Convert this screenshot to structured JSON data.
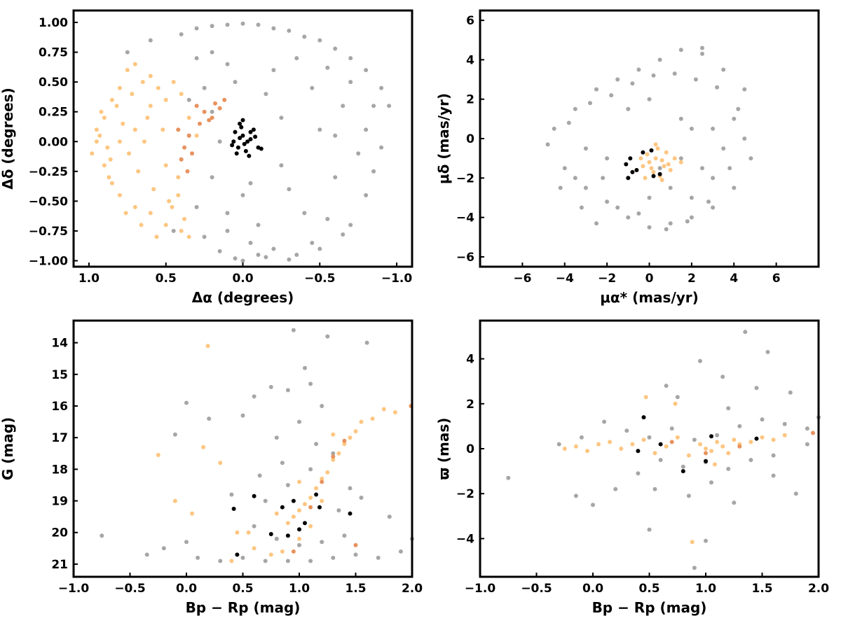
{
  "figure": {
    "colors": {
      "field": "#a6a6a6",
      "light_orange": "#fdc681",
      "dark_orange": "#e8925e",
      "black": "#000000"
    }
  },
  "chart_data": [
    {
      "type": "scatter",
      "xlabel": "Δα (degrees)",
      "ylabel": "Δδ (degrees)",
      "xlim": [
        1.1,
        -1.1
      ],
      "ylim": [
        -1.05,
        1.1
      ],
      "x_inverted": true,
      "xticks": [
        1.0,
        0.5,
        0.0,
        -0.5,
        -1.0
      ],
      "xtick_labels": [
        "1.0",
        "0.5",
        "0.0",
        "−0.5",
        "−1.0"
      ],
      "yticks": [
        1.0,
        0.75,
        0.5,
        0.25,
        0.0,
        -0.25,
        -0.5,
        -0.75,
        -1.0
      ],
      "ytick_labels": [
        "1.00",
        "0.75",
        "0.50",
        "0.25",
        "0.00",
        "−0.25",
        "−0.50",
        "−0.75",
        "−1.00"
      ],
      "grid": false,
      "series": [
        {
          "color": "#a6a6a6",
          "x": [
            0.75,
            0.6,
            0.4,
            0.3,
            0.2,
            0.1,
            0.0,
            -0.1,
            -0.2,
            -0.3,
            -0.4,
            -0.5,
            -0.6,
            -0.7,
            -0.8,
            -0.9,
            -0.95,
            0.3,
            0.2,
            0.1,
            -0.2,
            -0.35,
            -0.55,
            -0.7,
            -0.85,
            0.25,
            0.05,
            -0.15,
            -0.45,
            -0.65,
            -0.8,
            0.35,
            0.15,
            -0.05,
            -0.25,
            -0.5,
            -0.75,
            -0.9,
            0.4,
            0.2,
            0.0,
            -0.3,
            -0.6,
            -0.8,
            0.3,
            0.1,
            -0.1,
            -0.4,
            -0.55,
            -0.7,
            0.45,
            0.25,
            -0.05,
            -0.2,
            -0.45,
            -0.65,
            0.15,
            -0.1,
            -0.35,
            -0.5,
            0.05,
            -0.15,
            -0.3,
            0.0,
            0.1,
            -0.25,
            0.35,
            0.2,
            -0.6,
            -0.85
          ],
          "y": [
            0.75,
            0.85,
            0.9,
            0.95,
            0.97,
            0.98,
            0.99,
            0.98,
            0.95,
            0.93,
            0.88,
            0.85,
            0.78,
            0.7,
            0.6,
            0.45,
            0.3,
            0.7,
            0.75,
            0.65,
            0.6,
            0.7,
            0.62,
            0.5,
            0.3,
            0.45,
            0.5,
            0.4,
            0.45,
            0.3,
            0.1,
            0.05,
            0.0,
            -0.35,
            -0.2,
            0.1,
            -0.1,
            -0.05,
            -0.15,
            -0.3,
            -0.45,
            -0.4,
            -0.3,
            -0.45,
            -0.55,
            -0.6,
            -0.7,
            -0.6,
            -0.65,
            -0.7,
            -0.75,
            -0.8,
            -0.85,
            -0.9,
            -0.85,
            -0.78,
            -0.92,
            -0.95,
            -0.95,
            -0.9,
            -0.98,
            -0.97,
            -0.99,
            -1.0,
            -0.75,
            0.2,
            0.35,
            0.25,
            0.05,
            -0.25
          ]
        },
        {
          "color": "#fdc681",
          "x": [
            0.95,
            0.9,
            0.85,
            0.8,
            0.75,
            0.7,
            0.65,
            0.6,
            0.55,
            0.5,
            0.45,
            0.4,
            0.35,
            0.3,
            0.9,
            0.85,
            0.8,
            0.7,
            0.6,
            0.5,
            0.4,
            0.95,
            0.88,
            0.78,
            0.68,
            0.58,
            0.48,
            0.38,
            0.92,
            0.82,
            0.72,
            0.62,
            0.52,
            0.42,
            0.86,
            0.76,
            0.66,
            0.56,
            0.46,
            0.8,
            0.7,
            0.6,
            0.5,
            0.42,
            0.35,
            0.98,
            0.93,
            0.87,
            0.74,
            0.64
          ],
          "y": [
            0.0,
            0.2,
            0.35,
            0.45,
            0.6,
            0.65,
            0.5,
            0.55,
            0.45,
            0.35,
            0.5,
            0.4,
            0.2,
            0.05,
            -0.2,
            -0.35,
            -0.45,
            -0.55,
            -0.6,
            -0.7,
            -0.75,
            0.1,
            -0.05,
            0.15,
            -0.25,
            -0.4,
            -0.5,
            -0.65,
            0.25,
            0.3,
            0.4,
            0.2,
            0.1,
            -0.3,
            -0.15,
            -0.6,
            -0.7,
            -0.8,
            -0.55,
            0.0,
            0.1,
            0.3,
            -0.2,
            -0.45,
            -0.8,
            -0.1,
            0.05,
            -0.3,
            -0.1,
            0.0
          ]
        },
        {
          "color": "#e8925e",
          "x": [
            0.3,
            0.25,
            0.2,
            0.15,
            0.12,
            0.28,
            0.35,
            0.38,
            0.4,
            0.33,
            0.42,
            0.36,
            0.18,
            0.22
          ],
          "y": [
            0.3,
            0.25,
            0.2,
            0.28,
            0.35,
            0.15,
            0.05,
            -0.05,
            -0.15,
            -0.1,
            0.1,
            -0.25,
            0.32,
            0.18
          ]
        },
        {
          "color": "#000000",
          "x": [
            0.05,
            0.02,
            0.0,
            -0.03,
            -0.05,
            0.03,
            0.01,
            -0.02,
            -0.07,
            -0.1,
            0.04,
            0.06,
            -0.04,
            -0.08,
            0.0,
            0.02,
            -0.01,
            -0.05,
            0.07,
            -0.12
          ],
          "y": [
            0.08,
            0.15,
            0.05,
            0.0,
            0.02,
            -0.05,
            0.12,
            -0.08,
            0.1,
            -0.05,
            -0.1,
            0.0,
            -0.12,
            0.04,
            0.18,
            0.03,
            -0.02,
            0.08,
            -0.03,
            -0.06
          ]
        }
      ]
    },
    {
      "type": "scatter",
      "xlabel": "μα* (mas/yr)",
      "ylabel": "μδ (mas/yr)",
      "xlim": [
        -8,
        8
      ],
      "ylim": [
        -6.5,
        6.5
      ],
      "xticks": [
        -6,
        -4,
        -2,
        0,
        2,
        4,
        6
      ],
      "xtick_labels": [
        "−6",
        "−4",
        "−2",
        "0",
        "2",
        "4",
        "6"
      ],
      "yticks": [
        6,
        4,
        2,
        0,
        -2,
        -4,
        -6
      ],
      "ytick_labels": [
        "6",
        "4",
        "2",
        "0",
        "−2",
        "−4",
        "−6"
      ],
      "grid": false,
      "series": [
        {
          "color": "#a6a6a6",
          "x": [
            -4.5,
            -3.5,
            -2.5,
            -1.5,
            -0.5,
            0.5,
            1.5,
            2.5,
            3.5,
            4.5,
            -4,
            -3,
            -2,
            -1,
            0,
            1,
            2,
            3,
            4,
            4.8,
            -4.8,
            -3.8,
            -2.8,
            -1.8,
            -0.8,
            0.2,
            1.2,
            2.2,
            3.2,
            4.2,
            -2,
            -1,
            0,
            1,
            2,
            3,
            -3,
            0.5,
            1.5,
            2.5,
            3.5,
            -1.5,
            -0.5,
            4.5,
            -3.5,
            1.8,
            2.8,
            0.8,
            -2.5,
            3.8,
            1.5,
            0.0,
            -1.0,
            2.0,
            3.0,
            4.0,
            -4.2,
            -3.2,
            -2.2,
            2.5
          ],
          "y": [
            0.5,
            1.5,
            2.5,
            3.0,
            3.5,
            4.0,
            4.5,
            4.3,
            3.5,
            2.5,
            -1.5,
            -2.5,
            -3.2,
            -4.0,
            -4.5,
            -4.3,
            -4.0,
            -3.5,
            -2.5,
            -1.0,
            -0.3,
            0.8,
            1.8,
            2.2,
            2.8,
            3.2,
            3.3,
            3.0,
            2.6,
            1.5,
            -1.0,
            -2.0,
            -3.0,
            -2.5,
            -3.0,
            -2.0,
            -0.5,
            -1.5,
            -1.0,
            -1.5,
            -0.5,
            -3.5,
            -3.8,
            0.0,
            -2.0,
            -4.2,
            -3.2,
            -4.6,
            -4.3,
            -1.5,
            1.0,
            2.0,
            1.5,
            0.5,
            0.5,
            1.0,
            -2.5,
            -3.5,
            -2.0,
            4.6
          ]
        },
        {
          "color": "#fdc681",
          "x": [
            0.0,
            0.3,
            -0.3,
            0.6,
            -0.6,
            0.9,
            0.2,
            -0.1,
            0.5,
            1.2,
            0.8,
            -0.4,
            0.1,
            0.4,
            1.0,
            -0.2,
            0.7,
            1.5,
            0.3,
            0.6
          ],
          "y": [
            -1.2,
            -1.0,
            -1.4,
            -1.1,
            -1.6,
            -1.3,
            -1.7,
            -0.8,
            -1.9,
            -1.0,
            -0.7,
            -1.0,
            -1.5,
            -0.5,
            -1.6,
            -2.0,
            -1.4,
            -1.2,
            -0.3,
            -2.1
          ]
        },
        {
          "color": "#000000",
          "x": [
            -1.0,
            -0.8,
            -0.6,
            -1.1,
            -0.9,
            0.2,
            0.5,
            -0.3,
            0.1
          ],
          "y": [
            -2.0,
            -1.7,
            -1.6,
            -1.3,
            -1.0,
            -1.9,
            -1.8,
            -0.7,
            -0.6
          ]
        }
      ]
    },
    {
      "type": "scatter",
      "xlabel": "Bp − Rp (mag)",
      "ylabel": "G (mag)",
      "xlim": [
        -1.0,
        2.0
      ],
      "ylim": [
        13.3,
        21.4
      ],
      "y_inverted": true,
      "xticks": [
        -1.0,
        -0.5,
        0.0,
        0.5,
        1.0,
        1.5,
        2.0
      ],
      "xtick_labels": [
        "−1.0",
        "−0.5",
        "0.0",
        "0.5",
        "1.0",
        "1.5",
        "2.0"
      ],
      "yticks": [
        21,
        20,
        19,
        18,
        17,
        16,
        15,
        14
      ],
      "ytick_labels": [
        "21",
        "20",
        "19",
        "18",
        "17",
        "16",
        "15",
        "14"
      ],
      "grid": false,
      "series": [
        {
          "color": "#a6a6a6",
          "x": [
            -0.75,
            -0.35,
            -0.2,
            0.0,
            0.1,
            0.3,
            0.5,
            0.7,
            0.9,
            1.1,
            1.3,
            1.5,
            1.7,
            1.9,
            0.6,
            0.8,
            1.0,
            1.2,
            1.4,
            0.7,
            0.9,
            1.1,
            1.3,
            0.8,
            1.0,
            1.2,
            0.9,
            1.1,
            0.5,
            0.6,
            0.75,
            1.05,
            1.25,
            1.6,
            1.8,
            2.0,
            0.4,
            0.2,
            0.0,
            -0.1,
            0.95,
            1.45,
            1.55,
            0.85,
            1.15,
            0.65,
            1.35
          ],
          "y": [
            20.1,
            20.7,
            20.5,
            20.3,
            20.8,
            20.9,
            20.8,
            20.9,
            20.9,
            20.9,
            20.8,
            20.7,
            20.8,
            20.6,
            19.8,
            20.2,
            20.4,
            20.3,
            20.1,
            19.0,
            18.5,
            18.0,
            17.5,
            17.0,
            16.5,
            16.0,
            15.5,
            15.3,
            16.3,
            15.7,
            15.4,
            14.8,
            13.8,
            14.0,
            19.5,
            20.2,
            18.8,
            16.4,
            15.9,
            16.9,
            13.6,
            18.6,
            18.9,
            17.8,
            17.2,
            18.2,
            19.3
          ]
        },
        {
          "color": "#fdc681",
          "x": [
            -0.25,
            -0.1,
            0.05,
            0.15,
            0.3,
            0.45,
            0.6,
            0.75,
            0.85,
            0.95,
            1.0,
            1.05,
            1.1,
            1.15,
            1.2,
            1.25,
            1.3,
            1.35,
            1.4,
            1.45,
            1.5,
            1.55,
            1.65,
            1.75,
            1.85,
            0.9,
            1.0,
            1.1,
            0.8,
            1.2,
            0.19,
            0.4,
            0.55,
            1.0,
            1.3
          ],
          "y": [
            17.55,
            19.0,
            19.4,
            17.3,
            17.8,
            20.0,
            20.5,
            20.7,
            20.6,
            19.5,
            19.3,
            19.1,
            18.9,
            18.6,
            18.3,
            18.1,
            17.7,
            17.5,
            17.2,
            17.0,
            16.8,
            16.5,
            16.4,
            16.1,
            16.2,
            19.7,
            20.2,
            19.8,
            19.4,
            19.0,
            14.1,
            20.9,
            20.0,
            18.4,
            16.9
          ]
        },
        {
          "color": "#e8925e",
          "x": [
            1.1,
            1.2,
            1.3,
            0.95,
            1.4,
            1.5,
            1.99
          ],
          "y": [
            19.2,
            18.4,
            17.6,
            20.6,
            17.1,
            20.4,
            16.0
          ]
        },
        {
          "color": "#000000",
          "x": [
            0.45,
            0.42,
            0.6,
            0.75,
            0.9,
            0.95,
            1.0,
            1.05,
            1.15,
            1.18,
            1.45,
            0.85
          ],
          "y": [
            20.7,
            19.25,
            18.85,
            20.05,
            20.1,
            19.0,
            19.9,
            19.7,
            18.8,
            19.2,
            19.4,
            19.2
          ]
        }
      ]
    },
    {
      "type": "scatter",
      "xlabel": "Bp − Rp (mag)",
      "ylabel": "ϖ (mas)",
      "xlim": [
        -1.0,
        2.0
      ],
      "ylim": [
        -5.7,
        5.7
      ],
      "xticks": [
        -1.0,
        -0.5,
        0.0,
        0.5,
        1.0,
        1.5,
        2.0
      ],
      "xtick_labels": [
        "−1.0",
        "−0.5",
        "0.0",
        "0.5",
        "1.0",
        "1.5",
        "2.0"
      ],
      "yticks": [
        4,
        2,
        0,
        -2,
        -4
      ],
      "ytick_labels": [
        "4",
        "2",
        "0",
        "−2",
        "−4"
      ],
      "grid": false,
      "series": [
        {
          "color": "#a6a6a6",
          "x": [
            -0.75,
            -0.3,
            -0.1,
            0.1,
            0.3,
            0.5,
            0.7,
            0.9,
            1.1,
            1.3,
            1.5,
            1.7,
            1.9,
            2.0,
            0.6,
            0.8,
            1.0,
            1.2,
            1.4,
            0.4,
            0.55,
            0.85,
            1.05,
            1.25,
            1.6,
            1.8,
            0.95,
            1.35,
            0.65,
            1.15,
            0.75,
            1.45,
            0.9,
            1.0,
            1.55,
            1.75,
            0.2,
            0.0,
            -0.15,
            1.6,
            1.9,
            0.5,
            1.2
          ],
          "y": [
            -1.3,
            0.2,
            0.5,
            1.2,
            0.8,
            0.5,
            0.9,
            0.4,
            0.6,
            1.0,
            1.3,
            1.1,
            0.9,
            1.4,
            -0.5,
            -0.8,
            -0.6,
            -0.9,
            -0.5,
            -1.1,
            -1.8,
            -2.1,
            -1.5,
            -2.4,
            -1.2,
            -2.0,
            3.9,
            5.2,
            2.8,
            3.2,
            2.3,
            2.7,
            -5.3,
            -4.1,
            4.3,
            2.5,
            -1.8,
            -2.5,
            -2.1,
            -0.3,
            0.2,
            -3.6,
            1.8
          ]
        },
        {
          "color": "#fdc681",
          "x": [
            -0.25,
            -0.15,
            -0.05,
            0.05,
            0.15,
            0.25,
            0.35,
            0.45,
            0.55,
            0.65,
            0.75,
            0.85,
            0.95,
            1.0,
            1.05,
            1.1,
            1.15,
            1.2,
            1.25,
            1.3,
            1.4,
            1.5,
            1.6,
            1.7,
            0.88,
            0.47,
            0.73,
            1.08
          ],
          "y": [
            0.0,
            0.1,
            -0.1,
            0.2,
            0.3,
            0.0,
            0.2,
            0.4,
            -0.2,
            0.1,
            0.5,
            -0.3,
            0.2,
            0.0,
            -0.1,
            0.3,
            0.1,
            -0.2,
            0.4,
            0.2,
            0.3,
            0.5,
            0.4,
            0.6,
            -4.15,
            2.3,
            2.0,
            -0.7
          ]
        },
        {
          "color": "#e8925e",
          "x": [
            0.7,
            1.0,
            1.3,
            1.95
          ],
          "y": [
            0.3,
            -0.2,
            0.1,
            0.7
          ]
        },
        {
          "color": "#000000",
          "x": [
            0.45,
            0.4,
            0.8,
            1.05,
            1.45,
            1.0,
            0.6
          ],
          "y": [
            1.4,
            -0.1,
            -1.0,
            0.55,
            0.45,
            -0.55,
            0.2
          ]
        }
      ]
    }
  ]
}
